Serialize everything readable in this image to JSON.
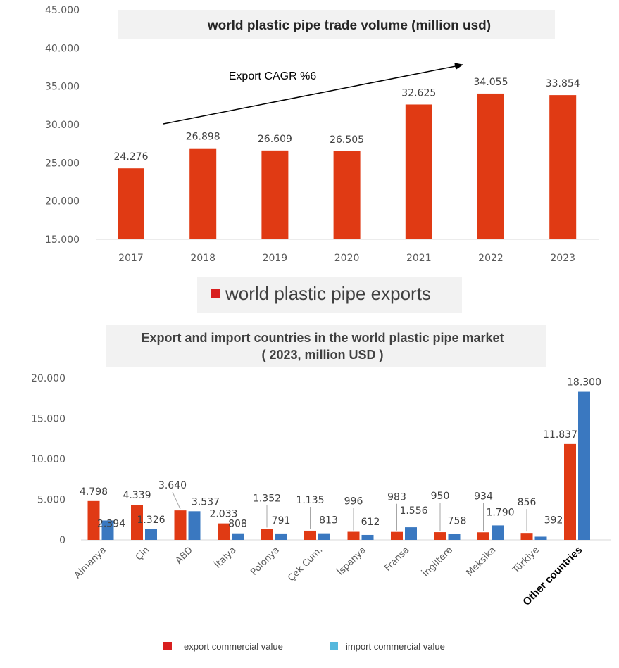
{
  "colors": {
    "export": "#e03a14",
    "import": "#3a78c0",
    "legend_export": "#d81f1f",
    "legend_import": "#55b8dd"
  },
  "chart_data": [
    {
      "type": "bar",
      "title": "world plastic pipe trade volume (million usd)",
      "categories": [
        "2017",
        "2018",
        "2019",
        "2020",
        "2021",
        "2022",
        "2023"
      ],
      "series": [
        {
          "name": "world plastic pipe exports",
          "values": [
            24276,
            26898,
            26609,
            26505,
            32625,
            34055,
            33854
          ]
        }
      ],
      "data_labels": [
        "24.276",
        "26.898",
        "26.609",
        "26.505",
        "32.625",
        "34.055",
        "33.854"
      ],
      "ylim": [
        15000,
        45000
      ],
      "yticks": [
        "15.000",
        "20.000",
        "25.000",
        "30.000",
        "35.000",
        "40.000",
        "45.000"
      ],
      "annotation": "Export CAGR %6",
      "grid": false,
      "legend_position": "bottom"
    },
    {
      "type": "bar",
      "title": "Export and import countries in the world plastic pipe market",
      "subtitle": "( 2023, million USD )",
      "categories": [
        "Almanya",
        "Çin",
        "ABD",
        "İtalya",
        "Polonya",
        "Çek Cum.",
        "İspanya",
        "Fransa",
        "İngiltere",
        "Meksika",
        "Türkiye",
        "Other countries"
      ],
      "series": [
        {
          "name": "export commercial value",
          "values": [
            4798,
            4339,
            3640,
            2033,
            1352,
            1135,
            996,
            983,
            950,
            934,
            856,
            11837
          ],
          "labels": [
            "4.798",
            "4.339",
            "3.640",
            "2.033",
            "1.352",
            "1.135",
            "996",
            "983",
            "950",
            "934",
            "856",
            "11.837"
          ]
        },
        {
          "name": "import commercial value",
          "values": [
            2394,
            1326,
            3537,
            808,
            791,
            813,
            612,
            1556,
            758,
            1790,
            392,
            18300
          ],
          "labels": [
            "2.394",
            "1.326",
            "3.537",
            "808",
            "791",
            "813",
            "612",
            "1.556",
            "758",
            "1.790",
            "392",
            "18.300"
          ]
        }
      ],
      "ylim": [
        0,
        20000
      ],
      "yticks": [
        "0",
        "5.000",
        "10.000",
        "15.000",
        "20.000"
      ],
      "grid": false,
      "legend_position": "bottom"
    }
  ]
}
